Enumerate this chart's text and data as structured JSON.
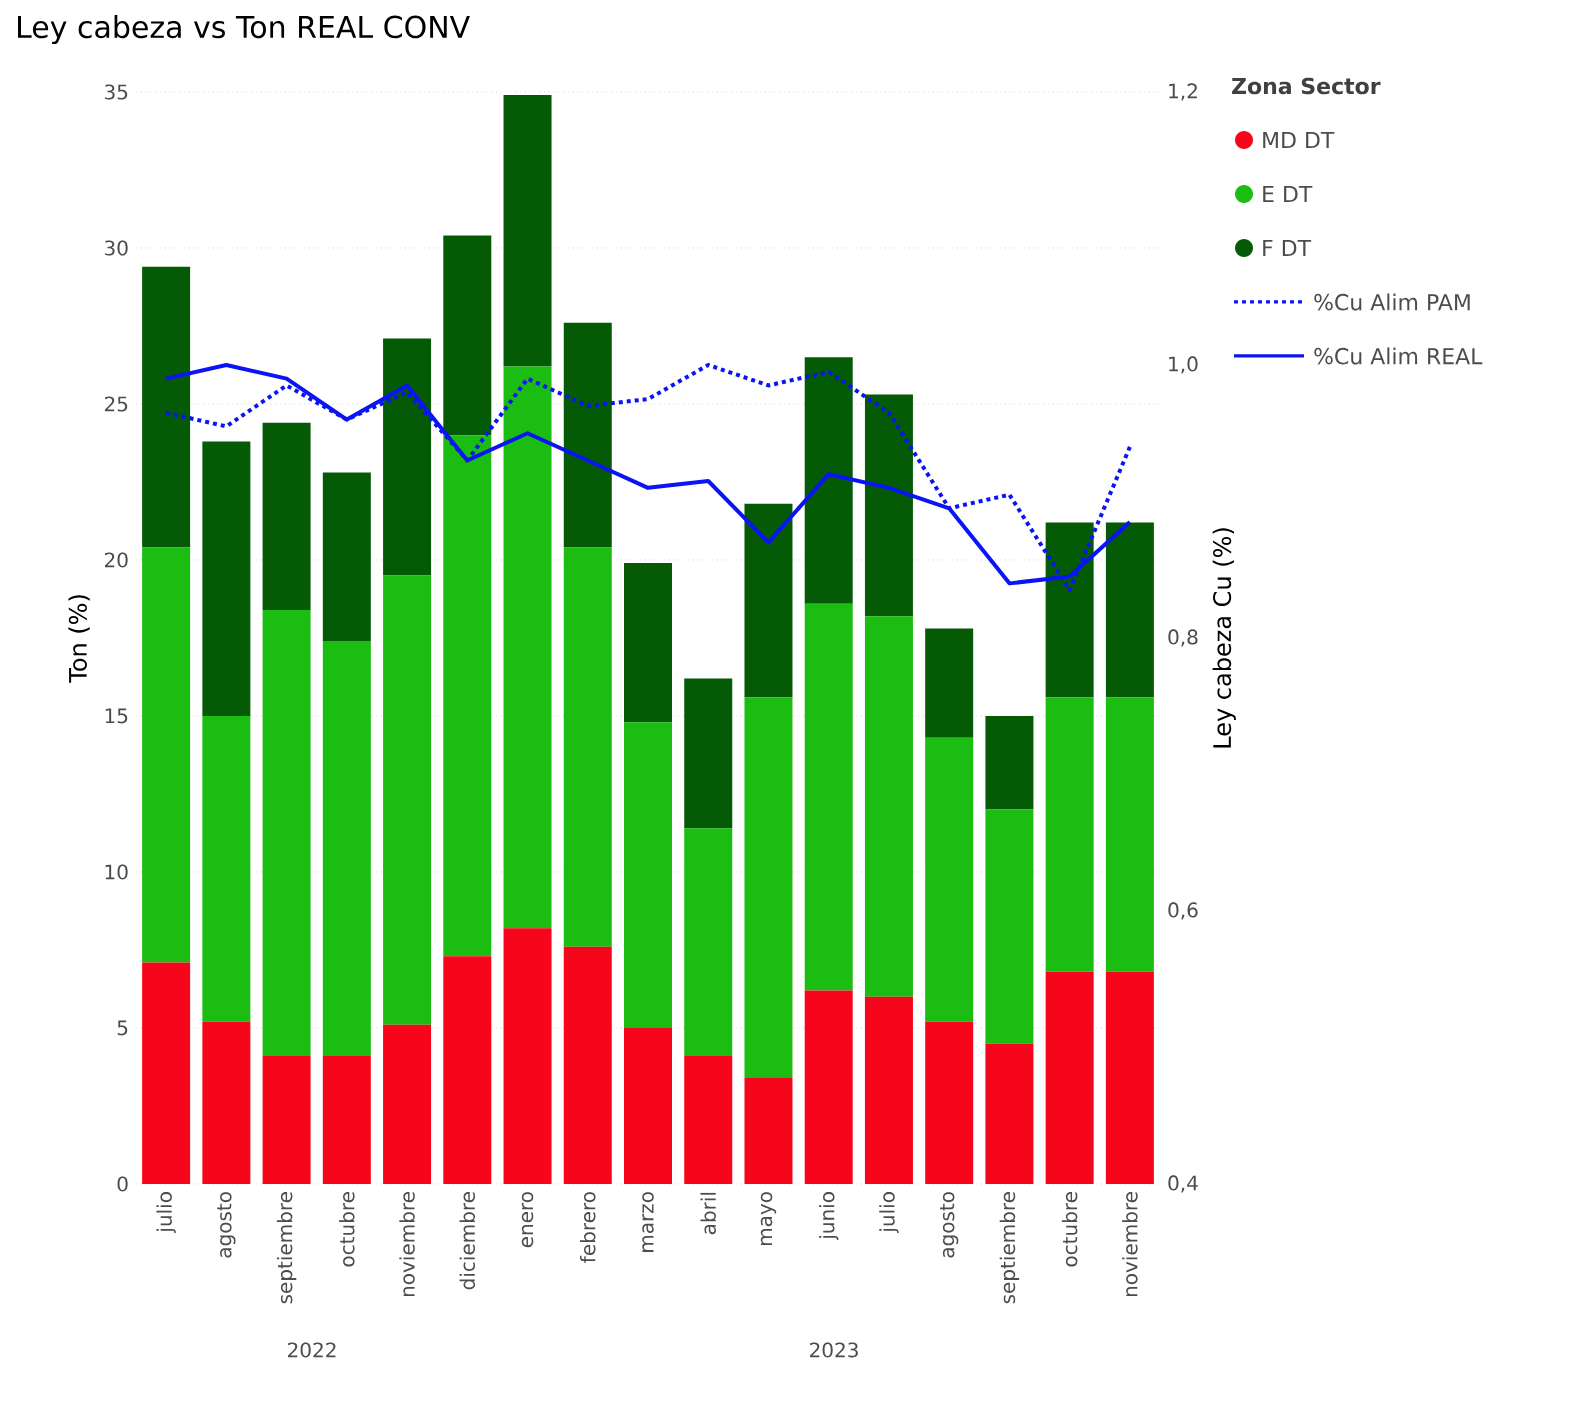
{
  "chart_data": {
    "type": "bar",
    "stacked": true,
    "title": "Ley cabeza vs Ton REAL CONV",
    "ylabel": "Ton (%)",
    "y2label": "Ley cabeza Cu (%)",
    "legend_title": "Zona Sector",
    "categories": [
      "julio",
      "agosto",
      "septiembre",
      "octubre",
      "noviembre",
      "diciembre",
      "enero",
      "febrero",
      "marzo",
      "abril",
      "mayo",
      "junio",
      "julio",
      "agosto",
      "septiembre",
      "octubre",
      "noviembre"
    ],
    "series": [
      {
        "name": "MD DT",
        "color": "#f5061a",
        "values": [
          7.1,
          5.2,
          4.1,
          4.1,
          5.1,
          7.3,
          8.2,
          7.6,
          5.0,
          4.1,
          3.4,
          6.2,
          6.0,
          5.2,
          4.5,
          6.8,
          6.8
        ]
      },
      {
        "name": "E DT",
        "color": "#1bbd13",
        "values": [
          13.3,
          9.8,
          14.3,
          13.3,
          14.4,
          16.7,
          18.0,
          12.8,
          9.8,
          7.3,
          12.2,
          12.4,
          12.2,
          9.1,
          7.5,
          8.8,
          8.8
        ]
      },
      {
        "name": "F DT",
        "color": "#045a05",
        "values": [
          9.0,
          8.8,
          6.0,
          5.4,
          7.6,
          6.4,
          8.7,
          7.2,
          5.1,
          4.8,
          6.2,
          7.9,
          7.1,
          3.5,
          3.0,
          5.6,
          5.6
        ]
      },
      {
        "name": "%Cu Alim PAM",
        "type": "line",
        "axis": "y2",
        "line_style": "dotted",
        "color": "#0a14f5",
        "values": [
          0.965,
          0.955,
          0.985,
          0.96,
          0.98,
          0.93,
          0.99,
          0.97,
          0.975,
          1.0,
          0.985,
          0.995,
          0.965,
          0.895,
          0.905,
          0.835,
          0.94
        ]
      },
      {
        "name": "%Cu Alim REAL",
        "type": "line",
        "axis": "y2",
        "line_style": "solid",
        "color": "#0a14f5",
        "values": [
          0.99,
          1.0,
          0.99,
          0.96,
          0.985,
          0.93,
          0.95,
          0.93,
          0.91,
          0.915,
          0.87,
          0.92,
          0.91,
          0.895,
          0.84,
          0.845,
          0.885
        ]
      }
    ],
    "ylim": [
      0,
      35
    ],
    "yticks": [
      0,
      5,
      10,
      15,
      20,
      25,
      30,
      35
    ],
    "y2lim": [
      0.4,
      1.2
    ],
    "y2ticks": [
      {
        "value": 0.4,
        "label": "0,4"
      },
      {
        "value": 0.6,
        "label": "0,6"
      },
      {
        "value": 0.8,
        "label": "0,8"
      },
      {
        "value": 1.0,
        "label": "1,0"
      },
      {
        "value": 1.2,
        "label": "1,2"
      }
    ],
    "grid": "y",
    "legend": "right",
    "marker": "none",
    "annotations": [
      "2022",
      "2023"
    ]
  }
}
